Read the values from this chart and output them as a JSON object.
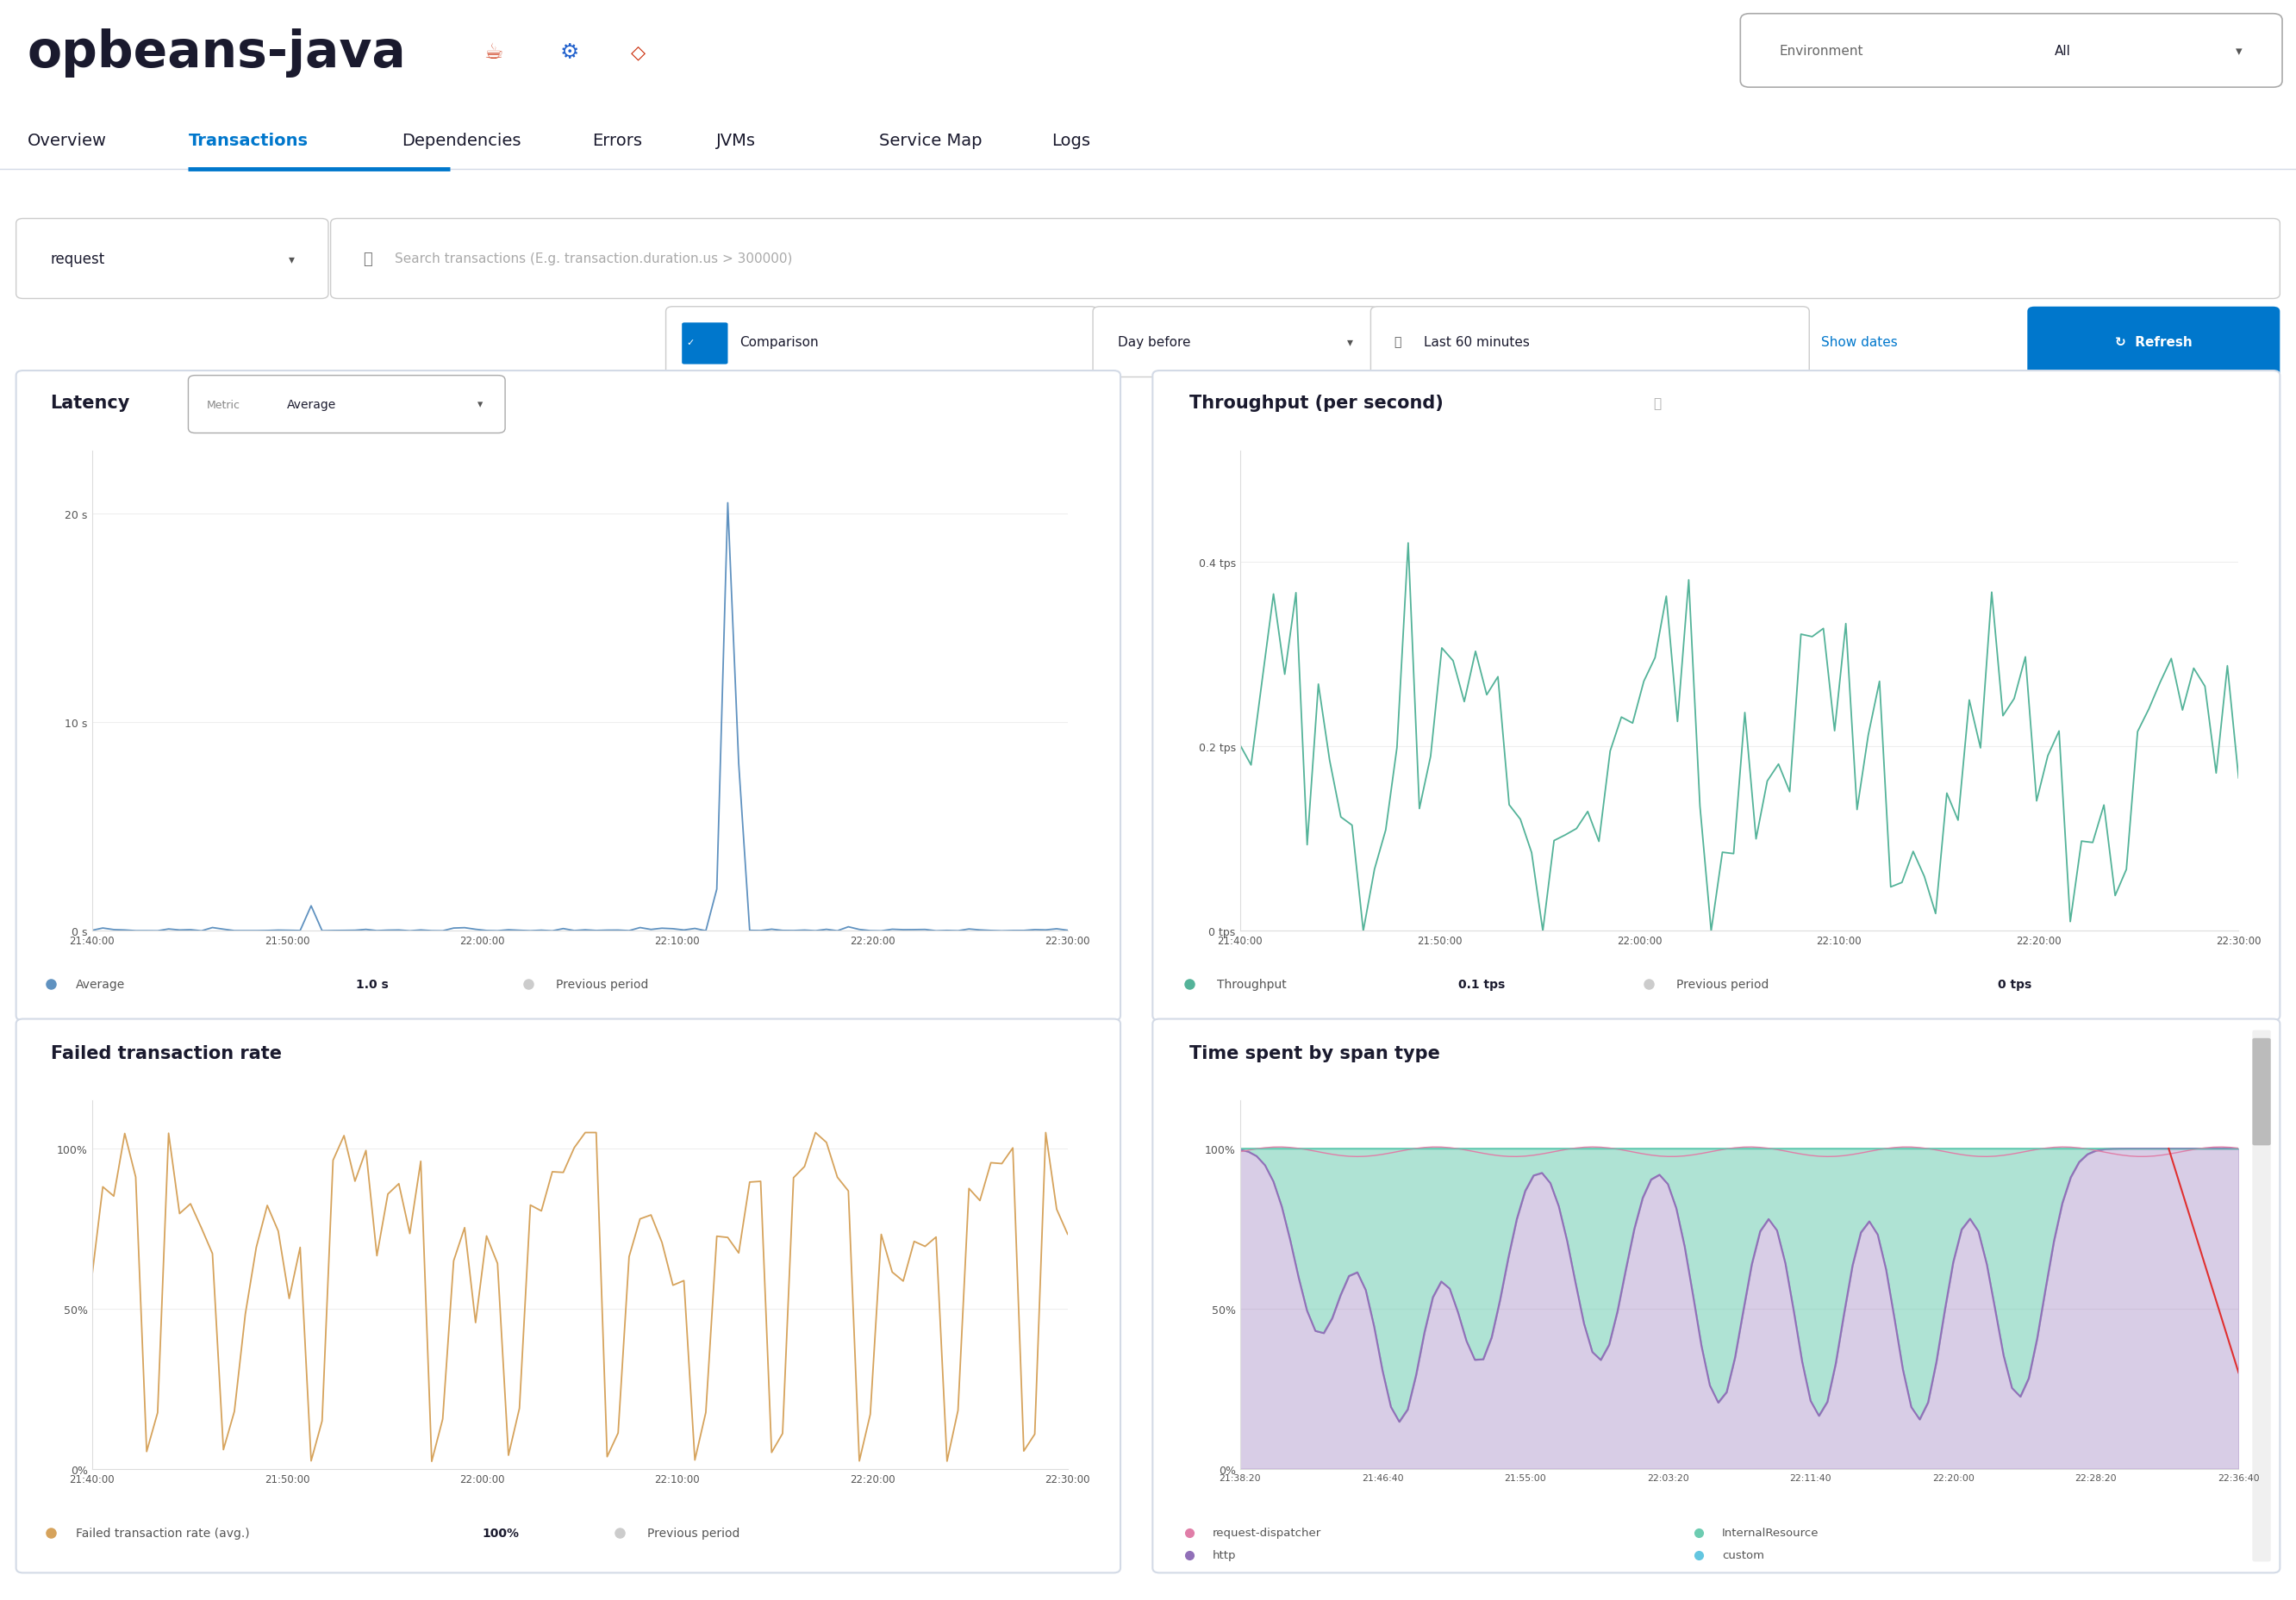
{
  "title": "opbeans-java",
  "bg_color": "#ffffff",
  "nav_items": [
    "Overview",
    "Transactions",
    "Dependencies",
    "Errors",
    "JVMs",
    "Service Map",
    "Logs"
  ],
  "active_nav": "Transactions",
  "nav_color": "#0077CC",
  "nav_inactive_color": "#1a1a2e",
  "panel_border": "#d3dae6",
  "latency_title": "Latency",
  "latency_xticks": [
    "21:40:00",
    "21:50:00",
    "22:00:00",
    "22:10:00",
    "22:20:00",
    "22:30:00"
  ],
  "latency_line_color": "#6092C0",
  "latency_prev_color": "#aaaaaa",
  "latency_avg_label": "Average",
  "latency_avg_value": "1.0 s",
  "latency_prev_label": "Previous period",
  "throughput_title": "Throughput (per second)",
  "throughput_xticks": [
    "21:40:00",
    "21:50:00",
    "22:00:00",
    "22:10:00",
    "22:20:00",
    "22:30:00"
  ],
  "throughput_line_color": "#54B399",
  "throughput_prev_color": "#aaaaaa",
  "throughput_label": "Throughput",
  "throughput_value": "0.1 tps",
  "throughput_prev_label": "Previous period",
  "throughput_prev_value": "0 tps",
  "failrate_title": "Failed transaction rate",
  "failrate_xticks": [
    "21:40:00",
    "21:50:00",
    "22:00:00",
    "22:10:00",
    "22:20:00",
    "22:30:00"
  ],
  "failrate_line_color": "#D6A35C",
  "failrate_prev_color": "#aaaaaa",
  "failrate_label": "Failed transaction rate (avg.)",
  "failrate_value": "100%",
  "failrate_prev_label": "Previous period",
  "spantype_title": "Time spent by span type",
  "spantype_xticks": [
    "21:38:20",
    "21:46:40",
    "21:55:00",
    "22:03:20",
    "22:11:40",
    "22:20:00",
    "22:28:20",
    "22:36:40"
  ],
  "spantype_colors": [
    "#E07EA8",
    "#9170B8",
    "#6DCCB1",
    "#63C6E0"
  ],
  "spantype_labels": [
    "request-dispatcher",
    "http",
    "InternalResource",
    "custom"
  ]
}
